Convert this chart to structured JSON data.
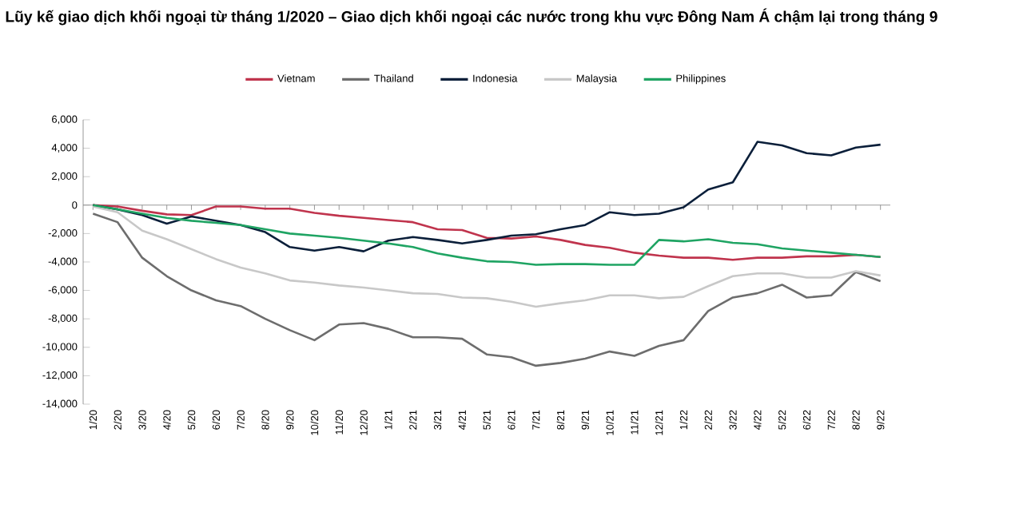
{
  "chart_data": {
    "type": "line",
    "title": "Lũy kế giao dịch khối ngoại từ tháng 1/2020 – Giao dịch khối ngoại các nước trong khu vực Đông Nam Á chậm lại trong tháng 9",
    "categories": [
      "1/20",
      "2/20",
      "3/20",
      "4/20",
      "5/20",
      "6/20",
      "7/20",
      "8/20",
      "9/20",
      "10/20",
      "11/20",
      "12/20",
      "1/21",
      "2/21",
      "3/21",
      "4/21",
      "5/21",
      "6/21",
      "7/21",
      "8/21",
      "9/21",
      "10/21",
      "11/21",
      "12/21",
      "1/22",
      "2/22",
      "3/22",
      "4/22",
      "5/22",
      "6/22",
      "7/22",
      "8/22",
      "9/22"
    ],
    "series": [
      {
        "name": "Vietnam",
        "color": "#c0344d",
        "values": [
          0,
          -100,
          -400,
          -650,
          -700,
          -100,
          -100,
          -250,
          -250,
          -550,
          -750,
          -900,
          -1050,
          -1200,
          -1700,
          -1750,
          -2300,
          -2350,
          -2200,
          -2450,
          -2800,
          -3000,
          -3350,
          -3550,
          -3700,
          -3700,
          -3850,
          -3700,
          -3700,
          -3600,
          -3600,
          -3500,
          -3650
        ]
      },
      {
        "name": "Thailand",
        "color": "#6d6d6d",
        "values": [
          -600,
          -1200,
          -3700,
          -5000,
          -6000,
          -6700,
          -7100,
          -8000,
          -8800,
          -9500,
          -8400,
          -8300,
          -8700,
          -9300,
          -9300,
          -9400,
          -10500,
          -10700,
          -11300,
          -11100,
          -10800,
          -10300,
          -10600,
          -9900,
          -9500,
          -7450,
          -6500,
          -6200,
          -5600,
          -6500,
          -6350,
          -4700,
          -5350
        ]
      },
      {
        "name": "Indonesia",
        "color": "#0b1f3a",
        "values": [
          0,
          -300,
          -700,
          -1300,
          -800,
          -1100,
          -1400,
          -1900,
          -2950,
          -3200,
          -2950,
          -3250,
          -2500,
          -2250,
          -2450,
          -2700,
          -2450,
          -2150,
          -2050,
          -1700,
          -1400,
          -500,
          -700,
          -600,
          -150,
          1100,
          1600,
          4450,
          4200,
          3650,
          3500,
          4050,
          4250
        ]
      },
      {
        "name": "Malaysia",
        "color": "#c8c8c8",
        "values": [
          -100,
          -500,
          -1800,
          -2400,
          -3100,
          -3800,
          -4400,
          -4800,
          -5300,
          -5450,
          -5650,
          -5800,
          -6000,
          -6200,
          -6250,
          -6500,
          -6550,
          -6800,
          -7150,
          -6900,
          -6700,
          -6350,
          -6350,
          -6550,
          -6450,
          -5700,
          -5000,
          -4800,
          -4800,
          -5100,
          -5100,
          -4650,
          -4950
        ]
      },
      {
        "name": "Philippines",
        "color": "#1fa463",
        "values": [
          0,
          -300,
          -600,
          -900,
          -1100,
          -1250,
          -1400,
          -1700,
          -2000,
          -2150,
          -2300,
          -2500,
          -2700,
          -2950,
          -3400,
          -3700,
          -3950,
          -4000,
          -4200,
          -4150,
          -4150,
          -4200,
          -4200,
          -2450,
          -2550,
          -2400,
          -2650,
          -2750,
          -3050,
          -3200,
          -3350,
          -3500,
          -3650
        ]
      }
    ],
    "ylim": [
      -14000,
      6000
    ],
    "yticks": [
      {
        "value": -14000,
        "label": "-14,000"
      },
      {
        "value": -12000,
        "label": "-12,000"
      },
      {
        "value": -10000,
        "label": "-10,000"
      },
      {
        "value": -8000,
        "label": "-8,000"
      },
      {
        "value": -6000,
        "label": "-6,000"
      },
      {
        "value": -4000,
        "label": "-4,000"
      },
      {
        "value": -2000,
        "label": "-2,000"
      },
      {
        "value": 0,
        "label": "0"
      },
      {
        "value": 2000,
        "label": "2,000"
      },
      {
        "value": 4000,
        "label": "4,000"
      },
      {
        "value": 6000,
        "label": "6,000"
      }
    ],
    "legend": "top"
  }
}
